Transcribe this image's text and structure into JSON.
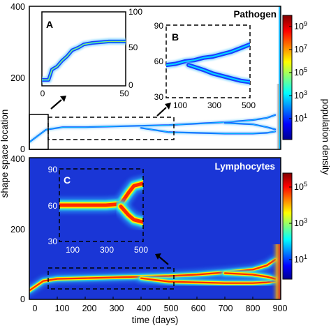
{
  "chart_data": {
    "type": "heatmap",
    "xlabel": "time (days)",
    "ylabel": "shape space location",
    "colorbar_label": "population density",
    "panels": [
      {
        "name": "Pathogen",
        "title": "Pathogen",
        "x_range": [
          0,
          900
        ],
        "y_range": [
          0,
          400
        ],
        "y_ticks": [
          "0",
          "200",
          "400"
        ],
        "background_color": "#ffffff",
        "colorbar_ticks": [
          "10^9",
          "10^7",
          "10^5",
          "10^3",
          "10^1"
        ],
        "branches": [
          {
            "x": [
              0,
              60,
              120,
              200,
              300,
              400,
              500,
              600,
              700,
              800,
              850,
              880
            ],
            "y": [
              20,
              55,
              62,
              62,
              64,
              66,
              68,
              72,
              76,
              82,
              88,
              96
            ]
          },
          {
            "x": [
              400,
              500,
              600,
              700,
              800,
              850,
              880
            ],
            "y": [
              60,
              48,
              46,
              44,
              44,
              46,
              50
            ]
          },
          {
            "x": [
              700,
              800,
              850,
              880
            ],
            "y": [
              74,
              70,
              62,
              56
            ]
          }
        ],
        "insets": [
          {
            "label": "A",
            "x_ticks": [
              "0",
              "50"
            ],
            "y_ticks": [
              "0",
              "50",
              "100"
            ],
            "x_range": [
              0,
              50
            ],
            "y_range": [
              0,
              100
            ],
            "branches": [
              {
                "x": [
                  0,
                  4,
                  6,
                  9,
                  12,
                  15,
                  18,
                  22,
                  25,
                  30,
                  35,
                  40,
                  45,
                  50
                ],
                "y": [
                  8,
                  8,
                  22,
                  26,
                  34,
                  40,
                  48,
                  52,
                  56,
                  58,
                  59,
                  60,
                  60,
                  60
                ]
              }
            ]
          },
          {
            "label": "B",
            "x_ticks": [
              "100",
              "300",
              "500"
            ],
            "y_ticks": [
              "30",
              "60",
              "90"
            ],
            "x_range": [
              50,
              500
            ],
            "y_range": [
              30,
              90
            ],
            "branches": [
              {
                "x": [
                  50,
                  100,
                  150,
                  200,
                  250,
                  300,
                  350,
                  400,
                  450,
                  500
                ],
                "y": [
                  57,
                  58,
                  60,
                  61,
                  63,
                  64,
                  66,
                  68,
                  71,
                  74
                ]
              },
              {
                "x": [
                  170,
                  250,
                  300,
                  350,
                  400,
                  450,
                  500
                ],
                "y": [
                  57,
                  53,
                  50,
                  48,
                  46,
                  44,
                  43
                ]
              }
            ]
          }
        ]
      },
      {
        "name": "Lymphocytes",
        "title": "Lymphocytes",
        "x_range": [
          0,
          900
        ],
        "y_range": [
          0,
          400
        ],
        "x_ticks": [
          "0",
          "100",
          "200",
          "300",
          "400",
          "500",
          "600",
          "700",
          "800",
          "900"
        ],
        "y_ticks": [
          "0",
          "200",
          "400"
        ],
        "background_color": "#1a36d6",
        "colorbar_ticks": [
          "10^5",
          "10^3",
          "10^1"
        ],
        "branches": [
          {
            "x": [
              0,
              50,
              100,
              200,
              300,
              400,
              500,
              600,
              700,
              800,
              850,
              880
            ],
            "y": [
              25,
              52,
              58,
              60,
              62,
              64,
              66,
              70,
              76,
              84,
              96,
              112
            ]
          },
          {
            "x": [
              400,
              500,
              600,
              700,
              800,
              850,
              880
            ],
            "y": [
              60,
              50,
              48,
              46,
              46,
              48,
              52
            ]
          },
          {
            "x": [
              700,
              800,
              850,
              880
            ],
            "y": [
              74,
              70,
              64,
              58
            ]
          }
        ],
        "insets": [
          {
            "label": "C",
            "x_ticks": [
              "100",
              "300",
              "500"
            ],
            "y_ticks": [
              "30",
              "60",
              "90"
            ],
            "x_range": [
              50,
              500
            ],
            "y_range": [
              30,
              90
            ],
            "branches": [
              {
                "x": [
                  50,
                  100,
                  200,
                  300,
                  380,
                  420,
                  450,
                  500
                ],
                "y": [
                  60,
                  60,
                  60,
                  60,
                  61,
                  70,
                  76,
                  78
                ]
              },
              {
                "x": [
                  380,
                  420,
                  450,
                  500
                ],
                "y": [
                  59,
                  52,
                  48,
                  46
                ]
              }
            ]
          }
        ]
      }
    ]
  }
}
